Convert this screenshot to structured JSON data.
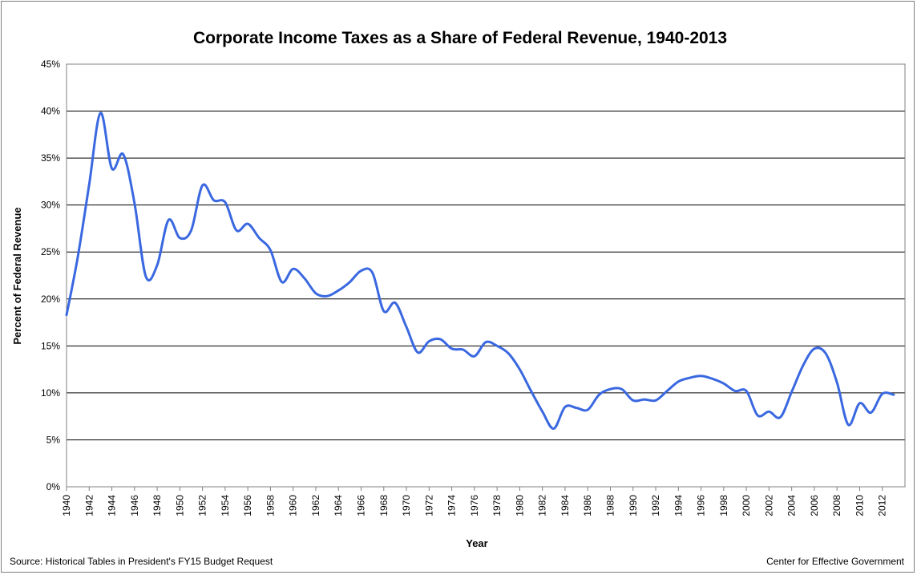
{
  "chart_data": {
    "type": "line",
    "title": "Corporate Income Taxes as a Share of Federal Revenue, 1940-2013",
    "xlabel": "Year",
    "ylabel": "Percent of Federal Revenue",
    "xlim": [
      1940,
      2014
    ],
    "ylim": [
      0,
      45
    ],
    "y_ticks": [
      0,
      5,
      10,
      15,
      20,
      25,
      30,
      35,
      40,
      45
    ],
    "y_tick_labels": [
      "0%",
      "5%",
      "10%",
      "15%",
      "20%",
      "25%",
      "30%",
      "35%",
      "40%",
      "45%"
    ],
    "x_ticks": [
      1940,
      1942,
      1944,
      1946,
      1948,
      1950,
      1952,
      1954,
      1956,
      1958,
      1960,
      1962,
      1964,
      1966,
      1968,
      1970,
      1972,
      1974,
      1976,
      1978,
      1980,
      1982,
      1984,
      1986,
      1988,
      1990,
      1992,
      1994,
      1996,
      1998,
      2000,
      2002,
      2004,
      2006,
      2008,
      2010,
      2012
    ],
    "x_tick_labels": [
      "1940",
      "1942",
      "1944",
      "1946",
      "1948",
      "1950",
      "1952",
      "1954",
      "1956",
      "1958",
      "1960",
      "1962",
      "1964",
      "1966",
      "1968",
      "1970",
      "1972",
      "1974",
      "1976",
      "1978",
      "1980",
      "1982",
      "1984",
      "1986",
      "1988",
      "1990",
      "1992",
      "1994",
      "1996",
      "1998",
      "2000",
      "2002",
      "2004",
      "2006",
      "2008",
      "2010",
      "2012"
    ],
    "grid": true,
    "line_color": "#3a68e0",
    "series": [
      {
        "x": [
          1940,
          1941,
          1942,
          1943,
          1944,
          1945,
          1946,
          1947,
          1948,
          1949,
          1950,
          1951,
          1952,
          1953,
          1954,
          1955,
          1956,
          1957,
          1958,
          1959,
          1960,
          1961,
          1962,
          1963,
          1964,
          1965,
          1966,
          1967,
          1968,
          1969,
          1970,
          1971,
          1972,
          1973,
          1974,
          1975,
          1976,
          1977,
          1978,
          1979,
          1980,
          1981,
          1982,
          1983,
          1984,
          1985,
          1986,
          1987,
          1988,
          1989,
          1990,
          1991,
          1992,
          1993,
          1994,
          1995,
          1996,
          1997,
          1998,
          1999,
          2000,
          2001,
          2002,
          2003,
          2004,
          2005,
          2006,
          2007,
          2008,
          2009,
          2010,
          2011,
          2012,
          2013
        ],
        "values": [
          18.3,
          24.5,
          32.2,
          39.8,
          33.9,
          35.4,
          30.2,
          22.4,
          23.6,
          28.4,
          26.5,
          27.3,
          32.1,
          30.5,
          30.3,
          27.3,
          28.0,
          26.5,
          25.2,
          21.8,
          23.2,
          22.2,
          20.6,
          20.3,
          20.9,
          21.8,
          23.0,
          22.8,
          18.7,
          19.6,
          17.0,
          14.3,
          15.5,
          15.7,
          14.7,
          14.6,
          13.9,
          15.4,
          15.0,
          14.2,
          12.5,
          10.2,
          8.0,
          6.2,
          8.5,
          8.4,
          8.2,
          9.8,
          10.4,
          10.4,
          9.2,
          9.3,
          9.2,
          10.2,
          11.2,
          11.6,
          11.8,
          11.5,
          11.0,
          10.2,
          10.2,
          7.6,
          8.0,
          7.4,
          10.1,
          12.9,
          14.7,
          14.2,
          11.1,
          6.6,
          8.9,
          7.9,
          9.9,
          9.8
        ]
      }
    ]
  },
  "footer": {
    "source": "Source: Historical Tables in President's FY15 Budget Request",
    "credit": "Center for Effective Government"
  }
}
